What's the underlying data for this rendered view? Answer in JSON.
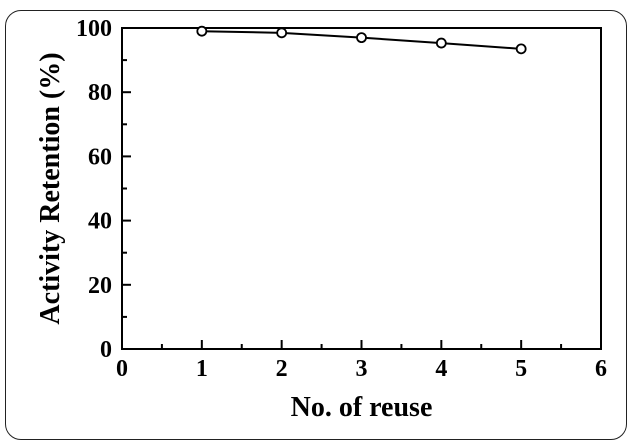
{
  "chart_data": {
    "type": "line",
    "title": "",
    "xlabel": "No. of reuse",
    "ylabel": "Activity Retention (%)",
    "xlim": [
      0,
      6
    ],
    "ylim": [
      0,
      100
    ],
    "x_ticks": [
      0,
      1,
      2,
      3,
      4,
      5,
      6
    ],
    "y_ticks": [
      0,
      20,
      40,
      60,
      80,
      100
    ],
    "grid": false,
    "series": [
      {
        "marker": "open-circle",
        "color": "#000000",
        "x": [
          1,
          2,
          3,
          4,
          5
        ],
        "y": [
          99,
          98.5,
          97,
          95.3,
          93.5
        ]
      }
    ]
  }
}
